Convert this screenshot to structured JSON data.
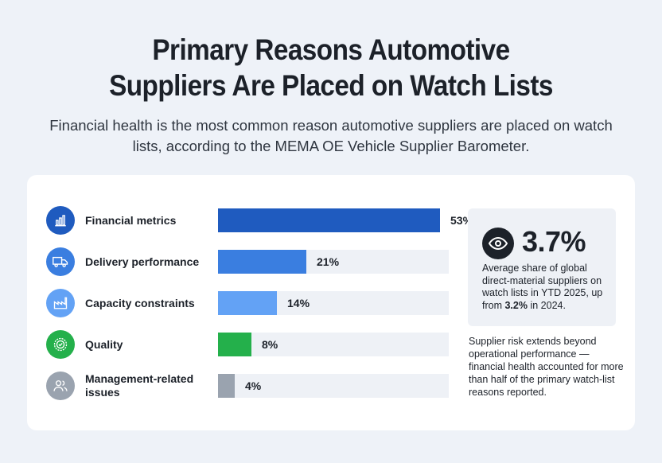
{
  "title_line1": "Primary Reasons Automotive",
  "title_line2": "Suppliers Are Placed on Watch Lists",
  "subtitle": "Financial health is the most common reason automotive suppliers are placed on watch lists, according to the MEMA OE Vehicle Supplier Barometer.",
  "chart_data": {
    "type": "bar",
    "orientation": "horizontal",
    "categories": [
      "Financial metrics",
      "Delivery performance",
      "Capacity constraints",
      "Quality",
      "Management-related issues"
    ],
    "values": [
      53,
      21,
      14,
      8,
      4
    ],
    "value_labels": [
      "53%",
      "21%",
      "14%",
      "8%",
      "4%"
    ],
    "bar_colors": [
      "#1f5bbf",
      "#3a7ee0",
      "#63a2f5",
      "#24b04b",
      "#9aa3af"
    ],
    "icon_colors": [
      "#1f5bbf",
      "#3a7ee0",
      "#63a2f5",
      "#24b04b",
      "#9aa3af"
    ],
    "icons": [
      "bar-chart-icon",
      "truck-icon",
      "factory-icon",
      "quality-seal-icon",
      "people-icon"
    ],
    "xlim": [
      0,
      55
    ]
  },
  "stat": {
    "icon": "eye-icon",
    "value": "3.7%",
    "desc_prefix": "Average share of global direct-material suppliers on watch lists in YTD 2025, up from ",
    "desc_highlight": "3.2%",
    "desc_suffix": " in 2024."
  },
  "note": "Supplier risk extends beyond operational performance — financial health accounted for more than half of the primary watch-list reasons reported."
}
